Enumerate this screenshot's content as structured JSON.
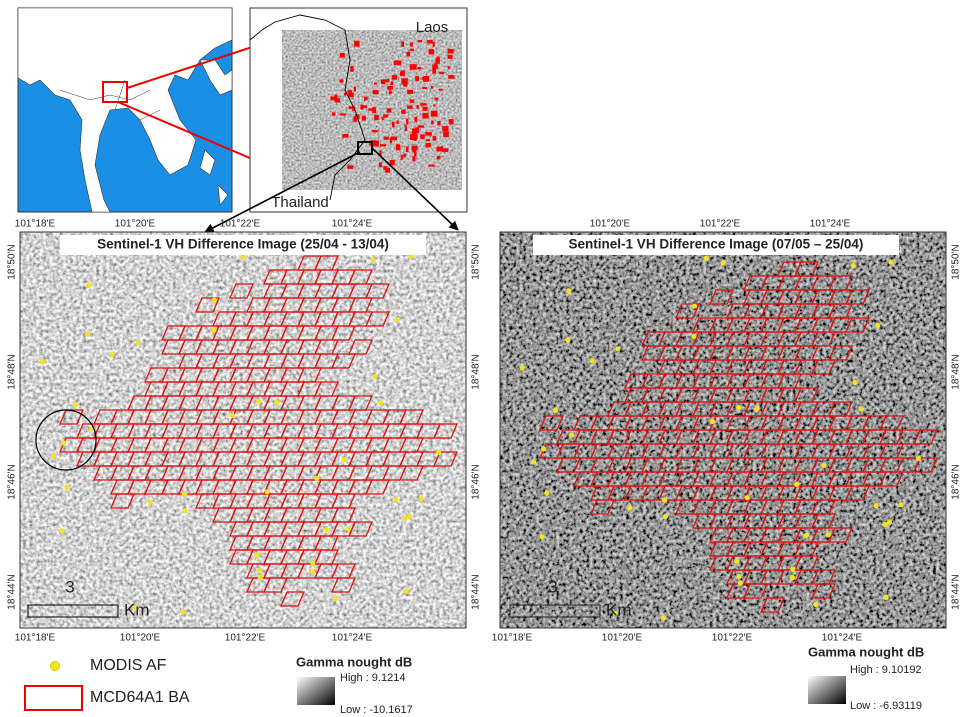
{
  "inset_map": {
    "labels": [
      "Laos",
      "Thailand"
    ]
  },
  "panels": [
    {
      "title": "Sentinel-1 VH Difference Image (25/04 - 13/04)",
      "top_ticks": [
        "101°18'E",
        "101°20'E",
        "101°22'E",
        "101°24'E"
      ],
      "bottom_ticks": [
        "101°18'E",
        "101°20'E",
        "101°22'E",
        "101°24'E"
      ],
      "left_ticks": [
        "18°50'N",
        "18°48'N",
        "18°46'N",
        "18°44'N"
      ],
      "right_ticks": [
        "18°50'N",
        "18°48'N",
        "18°46'N",
        "18°44'N"
      ],
      "scale": {
        "value": "3",
        "unit": "Km"
      },
      "gamma_legend": {
        "title": "Gamma nought dB",
        "high": "High : 9.1214",
        "low": "Low : -10.1617"
      }
    },
    {
      "title": "Sentinel-1 VH Difference Image (07/05 – 25/04)",
      "top_ticks": [
        "101°20'E",
        "101°22'E",
        "101°24'E"
      ],
      "bottom_ticks": [
        "101°18'E",
        "101°20'E",
        "101°22'E",
        "101°24'E"
      ],
      "right_ticks": [
        "18°50'N",
        "18°48'N",
        "18°46'N",
        "18°44'N"
      ],
      "scale": {
        "value": "3",
        "unit": "Km"
      },
      "gamma_legend": {
        "title": "Gamma nought dB",
        "high": "High : 9.10192",
        "low": "Low : -6.93119"
      }
    }
  ],
  "legend": {
    "items": [
      "MODIS AF",
      "MCD64A1 BA"
    ]
  }
}
